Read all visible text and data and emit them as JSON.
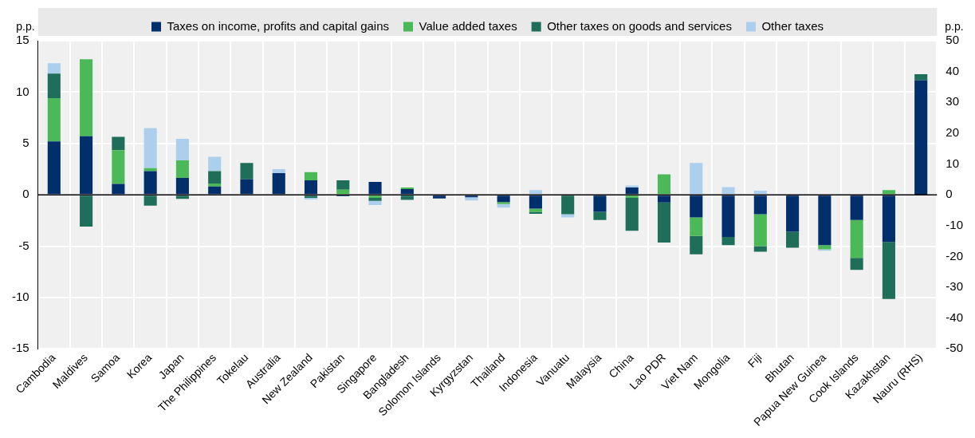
{
  "chart_data": {
    "type": "bar",
    "stacked": true,
    "grid": true,
    "legend": "top",
    "ylabel": "p.p.",
    "y2label": "p.p.",
    "categories": [
      "Cambodia",
      "Maldives",
      "Samoa",
      "Korea",
      "Japan",
      "The Philippines",
      "Tokelau",
      "Australia",
      "New Zealand",
      "Pakistan",
      "Singapore",
      "Bangladesh",
      "Solomon Islands",
      "Kyrgyzstan",
      "Thailand",
      "Indonesia",
      "Vanuatu",
      "Malaysia",
      "China",
      "Lao PDR",
      "Viet Nam",
      "Mongolia",
      "Fiji",
      "Bhutan",
      "Papua New Guinea",
      "Cook Islands",
      "Kazakhstan",
      "Nauru (RHS)"
    ],
    "ylim": [
      -15,
      15
    ],
    "yticks": [
      -15,
      -10,
      -5,
      0,
      5,
      10,
      15
    ],
    "y2lim": [
      -50,
      50
    ],
    "y2ticks": [
      -50,
      -40,
      -30,
      -20,
      -10,
      0,
      10,
      20,
      30,
      40,
      50
    ],
    "series": [
      {
        "name": "Taxes on income, profits and capital gains",
        "color": "#002f6c",
        "values": [
          5.2,
          5.7,
          1.05,
          2.3,
          1.65,
          0.8,
          1.5,
          2.1,
          1.4,
          -0.15,
          1.25,
          0.55,
          -0.35,
          -0.25,
          -0.7,
          -1.35,
          null,
          -1.65,
          0.7,
          -0.75,
          -2.2,
          -4.1,
          -1.9,
          -3.6,
          -4.9,
          -2.45,
          -4.6,
          null
        ]
      },
      {
        "name": "Value added taxes",
        "color": "#4cb958",
        "values": [
          4.2,
          7.5,
          3.3,
          0.3,
          1.7,
          0.3,
          null,
          null,
          0.8,
          0.5,
          -0.3,
          0.15,
          null,
          null,
          -0.2,
          -0.3,
          null,
          null,
          -0.3,
          2.0,
          -1.8,
          null,
          -3.1,
          null,
          -0.4,
          -3.7,
          0.45,
          null
        ]
      },
      {
        "name": "Other taxes on goods and services",
        "color": "#1f6e5a",
        "values": [
          2.4,
          -3.1,
          1.3,
          -1.05,
          -0.4,
          1.2,
          1.6,
          null,
          -0.3,
          0.9,
          -0.3,
          -0.5,
          null,
          null,
          null,
          -0.2,
          -1.9,
          -0.8,
          -3.2,
          -3.9,
          -1.8,
          -0.8,
          -0.55,
          -1.55,
          null,
          -1.15,
          -5.55,
          null
        ]
      },
      {
        "name": "Other taxes",
        "color": "#adcfee",
        "values": [
          1.0,
          null,
          null,
          3.9,
          2.1,
          1.4,
          null,
          0.4,
          -0.15,
          null,
          -0.4,
          null,
          null,
          -0.3,
          -0.35,
          0.45,
          -0.3,
          null,
          0.2,
          null,
          3.1,
          0.75,
          0.4,
          null,
          -0.15,
          null,
          null,
          null
        ]
      },
      {
        "color": "#002f6c",
        "axis": "y2",
        "values": [
          null,
          null,
          null,
          null,
          null,
          null,
          null,
          null,
          null,
          null,
          null,
          null,
          null,
          null,
          null,
          null,
          null,
          null,
          null,
          null,
          null,
          null,
          null,
          null,
          null,
          null,
          null,
          37.2
        ]
      },
      {
        "color": "#1f6e5a",
        "axis": "y2",
        "values": [
          null,
          null,
          null,
          null,
          null,
          null,
          null,
          null,
          null,
          null,
          null,
          null,
          null,
          null,
          null,
          null,
          null,
          null,
          null,
          null,
          null,
          null,
          null,
          null,
          null,
          null,
          null,
          1.9
        ]
      }
    ]
  }
}
